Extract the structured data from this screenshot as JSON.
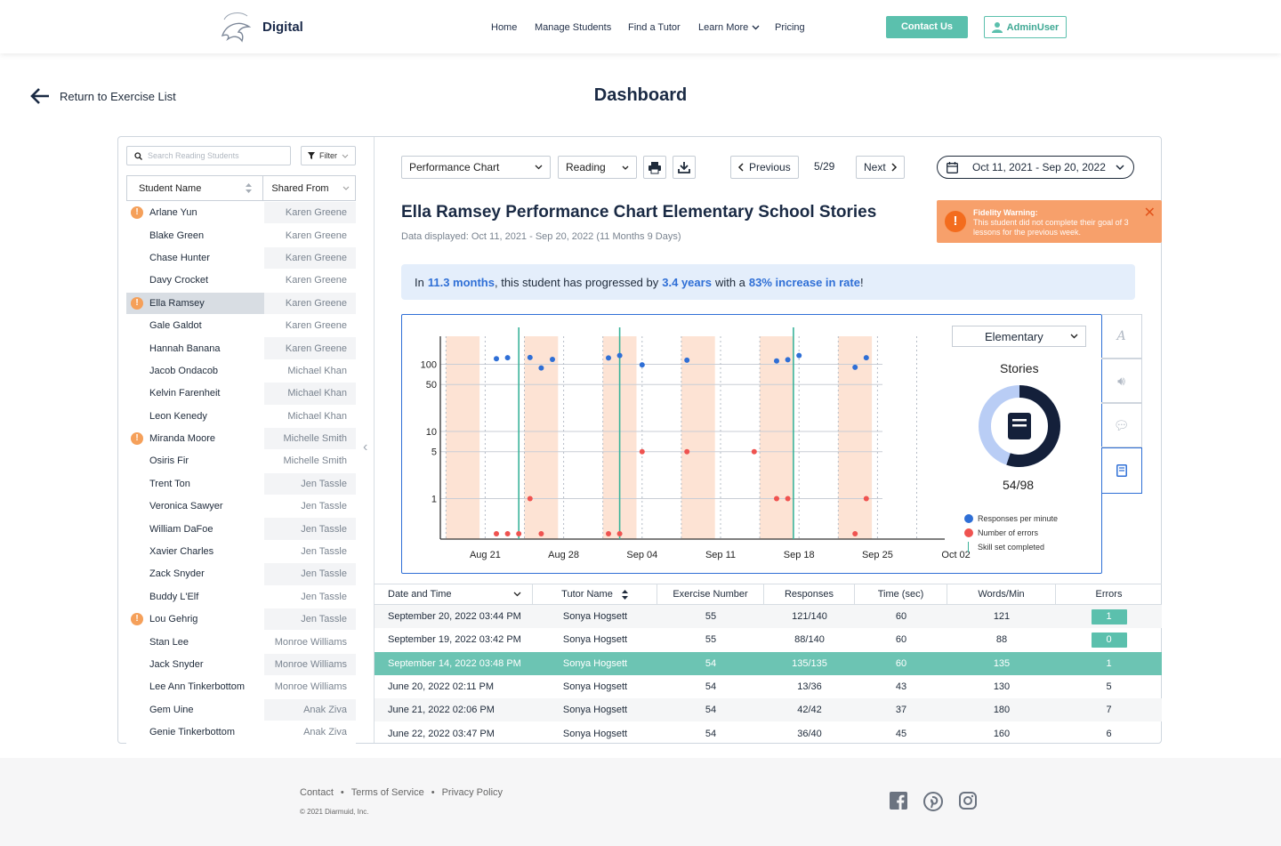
{
  "header": {
    "brand": "Digital",
    "nav": [
      "Home",
      "Manage Students",
      "Find a Tutor",
      "Learn More",
      "Pricing"
    ],
    "contact_label": "Contact Us",
    "admin_label": "AdminUser"
  },
  "back_label": "Return to Exercise List",
  "page_title": "Dashboard",
  "students": {
    "search_placeholder": "Search Reading Students",
    "filter_label": "Filter",
    "col_name": "Student Name",
    "col_shared": "Shared From",
    "rows": [
      {
        "name": "Arlane Yun",
        "shared": "Karen Greene",
        "warn": true
      },
      {
        "name": "Blake Green",
        "shared": "Karen Greene"
      },
      {
        "name": "Chase Hunter",
        "shared": "Karen Greene"
      },
      {
        "name": "Davy Crocket",
        "shared": "Karen Greene"
      },
      {
        "name": "Ella Ramsey",
        "shared": "Karen Greene",
        "warn": true,
        "selected": true
      },
      {
        "name": "Gale Galdot",
        "shared": "Karen Greene"
      },
      {
        "name": "Hannah Banana",
        "shared": "Karen Greene"
      },
      {
        "name": "Jacob Ondacob",
        "shared": "Michael Khan"
      },
      {
        "name": "Kelvin Farenheit",
        "shared": "Michael Khan"
      },
      {
        "name": "Leon Kenedy",
        "shared": "Michael Khan"
      },
      {
        "name": "Miranda Moore",
        "shared": "Michelle Smith",
        "warn": true
      },
      {
        "name": "Osiris Fir",
        "shared": "Michelle Smith"
      },
      {
        "name": "Trent Ton",
        "shared": "Jen Tassle"
      },
      {
        "name": "Veronica Sawyer",
        "shared": "Jen Tassle"
      },
      {
        "name": "William DaFoe",
        "shared": "Jen Tassle"
      },
      {
        "name": "Xavier Charles",
        "shared": "Jen Tassle"
      },
      {
        "name": "Zack Snyder",
        "shared": "Jen Tassle"
      },
      {
        "name": "Buddy L'Elf",
        "shared": "Jen Tassle"
      },
      {
        "name": "Lou Gehrig",
        "shared": "Jen Tassle",
        "warn": true
      },
      {
        "name": "Stan Lee",
        "shared": "Monroe Williams"
      },
      {
        "name": "Jack Snyder",
        "shared": "Monroe Williams"
      },
      {
        "name": "Lee Ann Tinkerbottom",
        "shared": "Monroe Williams"
      },
      {
        "name": "Gem Uine",
        "shared": "Anak Ziva"
      },
      {
        "name": "Genie Tinkerbottom",
        "shared": "Anak Ziva"
      }
    ]
  },
  "toolbar": {
    "chart_type": "Performance Chart",
    "subject": "Reading",
    "previous": "Previous",
    "page": "5/29",
    "next": "Next",
    "date_range": "Oct 11, 2021 - Sep 20, 2022"
  },
  "chart_header": {
    "title": "Ella Ramsey Performance Chart Elementary School Stories",
    "subtitle": "Data displayed: Oct 11, 2021 - Sep 20, 2022  (11 Months 9 Days)"
  },
  "fidelity": {
    "title": "Fidelity Warning:",
    "text": "This student did not complete their goal of 3 lessons for the previous week."
  },
  "progress": {
    "p1": "In",
    "months": "11.3 months",
    "p2": ", this student has progressed by",
    "years": "3.4 years",
    "p3": "with a",
    "rate": "83% increase in rate",
    "p4": "!"
  },
  "side_panel": {
    "level": "Elementary",
    "category": "Stories",
    "count": "54/98",
    "completed_fraction": 0.551,
    "legend": [
      "Responses per minute",
      "Number of errors",
      "Skill set completed"
    ]
  },
  "colors": {
    "accent": "#5bc0ad",
    "blue": "#2f6fd6",
    "error_red": "#ef5350",
    "shade": "#fde3d4",
    "navy": "#14203a"
  },
  "chart_data": {
    "type": "scatter",
    "title": "",
    "xlabel": "",
    "ylabel": "",
    "y_scale": "log",
    "y_ticks": [
      1,
      5,
      10,
      50,
      100
    ],
    "x_ticks": [
      "Aug 21",
      "Aug 28",
      "Sep 04",
      "Sep 11",
      "Sep 18",
      "Sep 25",
      "Oct 02"
    ],
    "x_range_days": [
      -4,
      37
    ],
    "shaded_days": [
      [
        -4,
        0
      ],
      [
        37,
        37
      ]
    ],
    "series": [
      {
        "name": "Responses per minute",
        "points": [
          [
            1,
            121
          ],
          [
            2,
            125
          ],
          [
            4,
            126
          ],
          [
            5,
            88
          ],
          [
            6,
            118
          ],
          [
            11,
            124
          ],
          [
            12,
            135
          ],
          [
            14,
            98
          ],
          [
            18,
            115
          ],
          [
            26,
            112
          ],
          [
            27,
            117
          ],
          [
            28,
            135
          ],
          [
            33,
            90
          ],
          [
            34,
            125
          ]
        ]
      },
      {
        "name": "Number of errors",
        "points": [
          [
            1,
            0.3
          ],
          [
            2,
            0.3
          ],
          [
            3,
            0.3
          ],
          [
            4,
            1
          ],
          [
            5,
            0.3
          ],
          [
            11,
            0.3
          ],
          [
            12,
            0.3
          ],
          [
            14,
            5
          ],
          [
            18,
            5
          ],
          [
            24,
            5
          ],
          [
            26,
            1
          ],
          [
            27,
            1
          ],
          [
            33,
            0.3
          ],
          [
            34,
            1
          ]
        ]
      }
    ],
    "skill_set_completed_days": [
      3,
      12,
      27.5
    ]
  },
  "table": {
    "headers": [
      "Date and Time",
      "Tutor Name",
      "Exercise Number",
      "Responses",
      "Time (sec)",
      "Words/Min",
      "Errors"
    ],
    "rows": [
      {
        "date": "September 20, 2022 03:44 PM",
        "tutor": "Sonya Hogsett",
        "ex": "55",
        "resp": "121/140",
        "time": "60",
        "wpm": "121",
        "err": "1",
        "badge": true
      },
      {
        "date": "September 19, 2022 03:42 PM",
        "tutor": "Sonya Hogsett",
        "ex": "55",
        "resp": "88/140",
        "time": "60",
        "wpm": "88",
        "err": "0",
        "badge": true
      },
      {
        "date": "September 14, 2022 03:48 PM",
        "tutor": "Sonya Hogsett",
        "ex": "54",
        "resp": "135/135",
        "time": "60",
        "wpm": "135",
        "err": "1",
        "highlight": true
      },
      {
        "date": "June 20, 2022 02:11 PM",
        "tutor": "Sonya Hogsett",
        "ex": "54",
        "resp": "13/36",
        "time": "43",
        "wpm": "130",
        "err": "5"
      },
      {
        "date": "June 21, 2022 02:06 PM",
        "tutor": "Sonya Hogsett",
        "ex": "54",
        "resp": "42/42",
        "time": "37",
        "wpm": "180",
        "err": "7"
      },
      {
        "date": "June 22, 2022 03:47 PM",
        "tutor": "Sonya Hogsett",
        "ex": "54",
        "resp": "36/40",
        "time": "45",
        "wpm": "160",
        "err": "6"
      }
    ]
  },
  "footer": {
    "links": [
      "Contact",
      "Terms of Service",
      "Privacy Policy"
    ],
    "copyright": "© 2021 Diarmuid, Inc.",
    "social": [
      "facebook-icon",
      "pinterest-icon",
      "instagram-icon"
    ]
  }
}
